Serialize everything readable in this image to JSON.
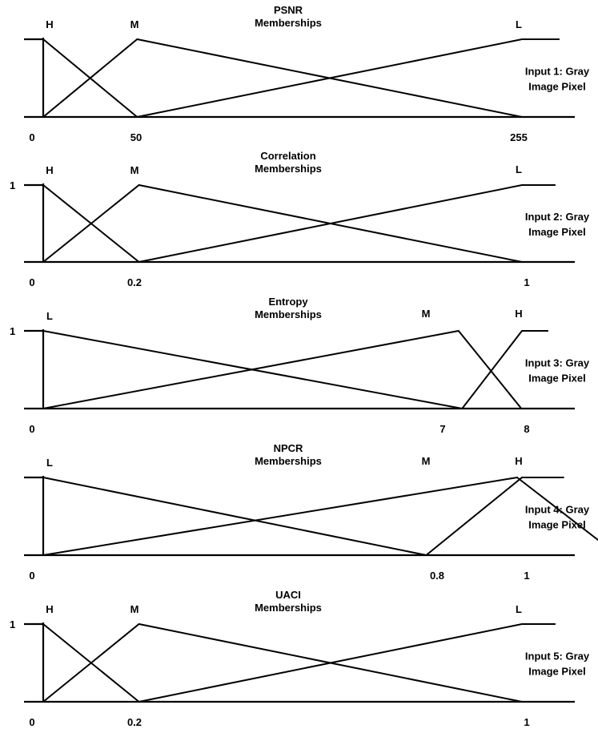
{
  "chart_data": [
    {
      "type": "line",
      "title": "PSNR",
      "subtitle": "Memberships",
      "side_label": [
        "Input 1: Gray",
        "Image Pixel"
      ],
      "y_tick_label": "",
      "x_ticks": [
        {
          "value": 0,
          "label": "0"
        },
        {
          "value": 50,
          "label": "50"
        },
        {
          "value": 255,
          "label": "255"
        }
      ],
      "x_range": [
        0,
        255
      ],
      "series": [
        {
          "name": "H",
          "x": [
            0,
            50
          ],
          "y": [
            1,
            0
          ]
        },
        {
          "name": "M",
          "x": [
            0,
            50,
            255
          ],
          "y": [
            0,
            1,
            0
          ]
        },
        {
          "name": "L",
          "x": [
            50,
            255,
            275
          ],
          "y": [
            0,
            1,
            1
          ]
        }
      ]
    },
    {
      "type": "line",
      "title": "Correlation",
      "subtitle": "Memberships",
      "side_label": [
        "Input 2: Gray",
        "Image Pixel"
      ],
      "y_tick_label": "1",
      "x_ticks": [
        {
          "value": 0,
          "label": "0"
        },
        {
          "value": 0.2,
          "label": "0.2"
        },
        {
          "value": 1,
          "label": "1"
        }
      ],
      "x_range": [
        0,
        1
      ],
      "series": [
        {
          "name": "H",
          "x": [
            0,
            0.2
          ],
          "y": [
            1,
            0
          ]
        },
        {
          "name": "M",
          "x": [
            0,
            0.2,
            1
          ],
          "y": [
            0,
            1,
            0
          ]
        },
        {
          "name": "L",
          "x": [
            0.2,
            1,
            1.07
          ],
          "y": [
            0,
            1,
            1
          ]
        }
      ]
    },
    {
      "type": "line",
      "title": "Entropy",
      "subtitle": "Memberships",
      "side_label": [
        "Input 3: Gray",
        "Image Pixel"
      ],
      "y_tick_label": "1",
      "x_ticks": [
        {
          "value": 0,
          "label": "0"
        },
        {
          "value": 7,
          "label": "7"
        },
        {
          "value": 8,
          "label": "8"
        }
      ],
      "x_range": [
        0,
        8
      ],
      "series": [
        {
          "name": "L",
          "x": [
            0,
            7
          ],
          "y": [
            1,
            0
          ]
        },
        {
          "name": "M",
          "x": [
            0,
            6.94,
            7.99
          ],
          "y": [
            0,
            1,
            0
          ]
        },
        {
          "name": "H",
          "x": [
            7,
            8,
            8.44
          ],
          "y": [
            0,
            1,
            1
          ]
        }
      ]
    },
    {
      "type": "line",
      "title": "NPCR",
      "subtitle": "Memberships",
      "side_label": [
        "Input 4: Gray",
        "Image Pixel"
      ],
      "y_tick_label": "",
      "x_ticks": [
        {
          "value": 0,
          "label": "0"
        },
        {
          "value": 0.8,
          "label": "0.8"
        },
        {
          "value": 1,
          "label": "1"
        }
      ],
      "x_range": [
        0,
        1
      ],
      "series": [
        {
          "name": "L",
          "x": [
            0,
            0.8
          ],
          "y": [
            1,
            0
          ]
        },
        {
          "name": "M",
          "x": [
            0,
            0.99,
            1.2
          ],
          "y": [
            0,
            1,
            0
          ]
        },
        {
          "name": "H",
          "x": [
            0.8,
            1,
            1.088
          ],
          "y": [
            0,
            1,
            1
          ]
        }
      ]
    },
    {
      "type": "line",
      "title": "UACI",
      "subtitle": "Memberships",
      "side_label": [
        "Input 5: Gray",
        "Image Pixel"
      ],
      "y_tick_label": "1",
      "x_ticks": [
        {
          "value": 0,
          "label": "0"
        },
        {
          "value": 0.2,
          "label": "0.2"
        },
        {
          "value": 1,
          "label": "1"
        }
      ],
      "x_range": [
        0,
        1
      ],
      "series": [
        {
          "name": "H",
          "x": [
            0,
            0.2
          ],
          "y": [
            1,
            0
          ]
        },
        {
          "name": "M",
          "x": [
            0,
            0.2,
            1
          ],
          "y": [
            0,
            1,
            0
          ]
        },
        {
          "name": "L",
          "x": [
            0.2,
            1,
            1.07
          ],
          "y": [
            0,
            1,
            1
          ]
        }
      ]
    }
  ]
}
